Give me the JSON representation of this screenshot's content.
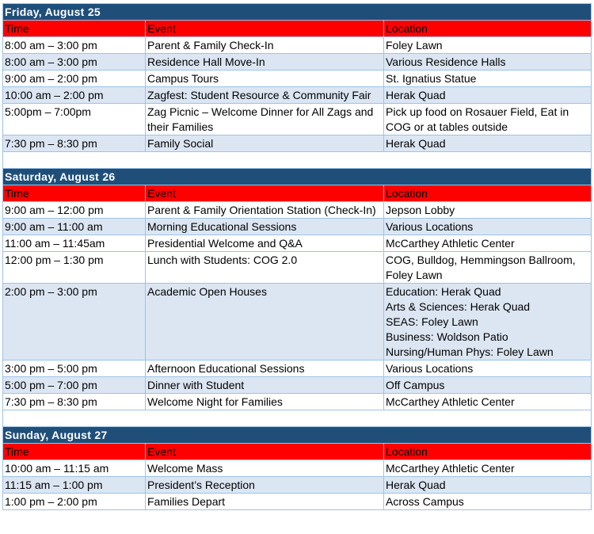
{
  "colors": {
    "day_header": "#1f4e79",
    "column_header": "#ff0000",
    "shaded_row": "#dce6f2",
    "border": "#9dc3e6"
  },
  "columns": [
    "Time",
    "Event",
    "Location"
  ],
  "days": [
    {
      "title": "Friday, August 25",
      "rows": [
        {
          "time": "8:00 am – 3:00 pm",
          "event": "Parent & Family Check-In",
          "location": [
            "Foley Lawn"
          ],
          "shaded": false
        },
        {
          "time": "8:00 am – 3:00 pm",
          "event": "Residence Hall Move-In",
          "location": [
            "Various Residence Halls"
          ],
          "shaded": true
        },
        {
          "time": "9:00 am – 2:00 pm",
          "event": "Campus Tours",
          "location": [
            "St. Ignatius Statue"
          ],
          "shaded": false
        },
        {
          "time": "10:00 am – 2:00 pm",
          "event": "Zagfest: Student Resource & Community Fair",
          "location": [
            "Herak Quad"
          ],
          "shaded": true
        },
        {
          "time": "5:00pm – 7:00pm",
          "event": "Zag Picnic – Welcome Dinner for All Zags and their Families",
          "location": [
            "Pick up food on Rosauer Field, Eat in COG or at tables outside"
          ],
          "shaded": false
        },
        {
          "time": "7:30 pm – 8:30 pm",
          "event": "Family Social",
          "location": [
            "Herak Quad"
          ],
          "shaded": true
        }
      ]
    },
    {
      "title": "Saturday, August 26",
      "rows": [
        {
          "time": "9:00 am – 12:00 pm",
          "event": "Parent & Family Orientation Station (Check-In)",
          "location": [
            "Jepson Lobby"
          ],
          "shaded": false
        },
        {
          "time": "9:00 am – 11:00 am",
          "event": "Morning Educational Sessions",
          "location": [
            "Various Locations"
          ],
          "shaded": true
        },
        {
          "time": "11:00 am – 11:45am",
          "event": "Presidential Welcome and Q&A",
          "location": [
            "McCarthey Athletic Center"
          ],
          "shaded": false
        },
        {
          "time": "12:00 pm – 1:30 pm",
          "event": "Lunch with Students: COG 2.0",
          "location": [
            "COG, Bulldog, Hemmingson Ballroom, Foley Lawn"
          ],
          "shaded": false
        },
        {
          "time": "2:00 pm – 3:00 pm",
          "event": "Academic Open Houses",
          "location": [
            "Education: Herak Quad",
            "Arts & Sciences: Herak Quad",
            "SEAS: Foley Lawn",
            "Business: Woldson Patio",
            "Nursing/Human Phys: Foley Lawn"
          ],
          "shaded": true
        },
        {
          "time": "3:00 pm – 5:00 pm",
          "event": "Afternoon Educational Sessions",
          "location": [
            "Various Locations"
          ],
          "shaded": false
        },
        {
          "time": "5:00 pm – 7:00 pm",
          "event": "Dinner with Student",
          "location": [
            "Off Campus"
          ],
          "shaded": true
        },
        {
          "time": "7:30 pm – 8:30 pm",
          "event": "Welcome Night for Families",
          "location": [
            "McCarthey Athletic Center"
          ],
          "shaded": false
        }
      ]
    },
    {
      "title": "Sunday, August 27",
      "rows": [
        {
          "time": "10:00 am – 11:15 am",
          "event": "Welcome Mass",
          "location": [
            "McCarthey Athletic Center"
          ],
          "shaded": false
        },
        {
          "time": "11:15 am – 1:00 pm",
          "event": "President’s Reception",
          "location": [
            "Herak Quad"
          ],
          "shaded": true
        },
        {
          "time": "1:00 pm – 2:00 pm",
          "event": "Families Depart",
          "location": [
            "Across Campus"
          ],
          "shaded": false
        }
      ]
    }
  ]
}
